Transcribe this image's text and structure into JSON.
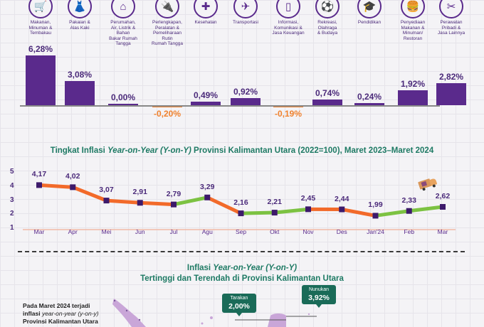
{
  "colors": {
    "primary_purple": "#5a2a8c",
    "negative_orange": "#f0822e",
    "line_up_green": "#7cc242",
    "line_down_orange": "#f26a2a",
    "title_green": "#1e7a64",
    "callout_green": "#1a6b58",
    "map_purple": "#c9a6d8"
  },
  "categories": [
    {
      "icon": "food-basket-icon",
      "glyph": "🛒",
      "label": "Makanan,\nMinuman &\nTembakau"
    },
    {
      "icon": "dress-icon",
      "glyph": "👗",
      "label": "Pakaian &\nAlas Kaki"
    },
    {
      "icon": "house-icon",
      "glyph": "⌂",
      "label": "Perumahan,\nAir, Listrik &\nBahan\nBakar Rumah\nTangga"
    },
    {
      "icon": "drill-icon",
      "glyph": "🔌",
      "label": "Perlengkapan,\nPeralatan &\nPemeliharaan\nRutin\nRumah Tangga"
    },
    {
      "icon": "medical-kit-icon",
      "glyph": "✚",
      "label": "Kesehatan"
    },
    {
      "icon": "airplane-icon",
      "glyph": "✈",
      "label": "Transportasi"
    },
    {
      "icon": "smartphone-icon",
      "glyph": "▯",
      "label": "Informasi,\nKomunikasi &\nJasa Keuangan"
    },
    {
      "icon": "soccer-player-icon",
      "glyph": "⚽",
      "label": "Rekreasi,\nOlahraga\n& Budaya"
    },
    {
      "icon": "graduation-cap-icon",
      "glyph": "🎓",
      "label": "Pendidikan"
    },
    {
      "icon": "food-drink-icon",
      "glyph": "🍔",
      "label": "Penyediaan\nMakanan &\nMinuman/\nRestoran"
    },
    {
      "icon": "tools-icon",
      "glyph": "✂",
      "label": "Perawatan\nPribadi &\nJasa Lainnya"
    }
  ],
  "chart_data": [
    {
      "type": "bar",
      "title": "",
      "categories": [
        "Makanan, Minuman & Tembakau",
        "Pakaian & Alas Kaki",
        "Perumahan, Air, Listrik & Bahan Bakar Rumah Tangga",
        "Perlengkapan, Peralatan & Pemeliharaan Rutin Rumah Tangga",
        "Kesehatan",
        "Transportasi",
        "Informasi, Komunikasi & Jasa Keuangan",
        "Rekreasi, Olahraga & Budaya",
        "Pendidikan",
        "Penyediaan Makanan & Minuman/ Restoran",
        "Perawatan Pribadi & Jasa Lainnya"
      ],
      "values": [
        6.28,
        3.08,
        0.0,
        -0.2,
        0.49,
        0.92,
        -0.19,
        0.74,
        0.24,
        1.92,
        2.82
      ],
      "labels": [
        "6,28%",
        "3,08%",
        "0,00%",
        "-0,20%",
        "0,49%",
        "0,92%",
        "-0,19%",
        "0,74%",
        "0,24%",
        "1,92%",
        "2,82%"
      ],
      "unit": "%",
      "xlabel": "",
      "ylabel": "",
      "grid": false
    },
    {
      "type": "line",
      "title": "Tingkat Inflasi Year-on-Year (Y-on-Y) Provinsi Kalimantan Utara (2022=100), Maret 2023–Maret 2024",
      "title_parts": {
        "pre": "Tingkat Inflasi ",
        "italic": "Year-on-Year (Y-on-Y)",
        "post": " Provinsi Kalimantan Utara (2022=100), Maret 2023–Maret 2024"
      },
      "x": [
        "Mar",
        "Apr",
        "Mei",
        "Jun",
        "Jul",
        "Agu",
        "Sep",
        "Okt",
        "Nov",
        "Des",
        "Jan'24",
        "Feb",
        "Mar"
      ],
      "values": [
        4.17,
        4.02,
        3.07,
        2.91,
        2.79,
        3.29,
        2.16,
        2.21,
        2.45,
        2.44,
        1.99,
        2.33,
        2.62
      ],
      "labels": [
        "4,17",
        "4,02",
        "3,07",
        "2,91",
        "2,79",
        "3,29",
        "2,16",
        "2,21",
        "2,45",
        "2,44",
        "1,99",
        "2,33",
        "2,62"
      ],
      "yticks": [
        "1",
        "2",
        "3",
        "4",
        "5"
      ],
      "ylim": [
        1,
        5
      ],
      "xlabel": "",
      "ylabel": "",
      "grid": false,
      "legend": "none"
    }
  ],
  "map_section": {
    "title_line1_pre": "Inflasi ",
    "title_line1_italic": "Year-on-Year (Y-on-Y)",
    "title_line2": "Tertinggi dan Terendah di Provinsi Kalimantan Utara",
    "description_line1": "Pada Maret 2024 terjadi",
    "description_line2_pre": "inflasi ",
    "description_line2_italic": "year-on-year (y-on-y)",
    "description_line3": "Provinsi Kalimantan Utara",
    "callouts": [
      {
        "name": "Tarakan",
        "value": "2,00%"
      },
      {
        "name": "Nunukan",
        "value": "3,92%"
      }
    ]
  }
}
